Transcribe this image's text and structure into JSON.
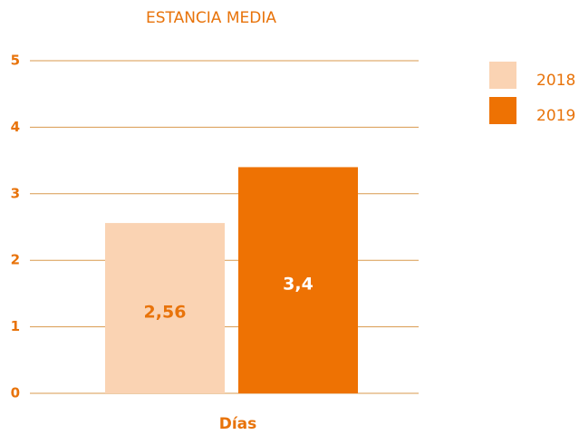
{
  "chart_data": {
    "type": "bar",
    "title": "ESTANCIA MEDIA",
    "categories": [
      "Días"
    ],
    "series": [
      {
        "name": "2018",
        "color": "#fad3b3",
        "values": [
          2.56
        ],
        "value_labels": [
          "2,56"
        ]
      },
      {
        "name": "2019",
        "color": "#ee7203",
        "values": [
          3.4
        ],
        "value_labels": [
          "3,4"
        ]
      }
    ],
    "ylim": [
      0,
      5
    ],
    "yticks": [
      0,
      1,
      2,
      3,
      4,
      5
    ],
    "grid": true,
    "legend": "right"
  }
}
